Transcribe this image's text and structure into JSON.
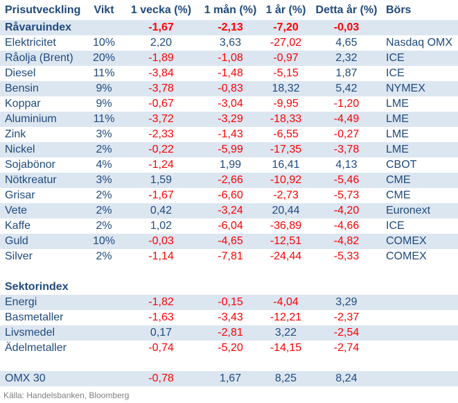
{
  "colors": {
    "text_navy": "#1F497D",
    "negative_red": "#FF0000",
    "row_band_blue": "#DCE6F1",
    "footer_gray": "#7F7F7F",
    "background": "#FFFFFF"
  },
  "chart_data": {
    "type": "table",
    "title": "Prisutveckling",
    "columns": [
      "Prisutveckling",
      "Vikt",
      "1 vecka (%)",
      "1 mån (%)",
      "1 år (%)",
      "Detta år (%)",
      "Börs"
    ],
    "rows": [
      {
        "type": "index",
        "label": "Råvaruindex",
        "vikt": "",
        "v1w": "-1,67",
        "v1m": "-2,13",
        "v1y": "-7,20",
        "ytd": "-0,03",
        "bors": ""
      },
      {
        "type": "commodity",
        "label": "Elektricitet",
        "vikt": "10%",
        "v1w": "2,20",
        "v1m": "3,63",
        "v1y": "-27,02",
        "ytd": "4,65",
        "bors": "Nasdaq OMX"
      },
      {
        "type": "commodity",
        "label": "Råolja (Brent)",
        "vikt": "20%",
        "v1w": "-1,89",
        "v1m": "-1,08",
        "v1y": "-0,97",
        "ytd": "2,32",
        "bors": "ICE"
      },
      {
        "type": "commodity",
        "label": "Diesel",
        "vikt": "11%",
        "v1w": "-3,84",
        "v1m": "-1,48",
        "v1y": "-5,15",
        "ytd": "1,87",
        "bors": "ICE"
      },
      {
        "type": "commodity",
        "label": "Bensin",
        "vikt": "9%",
        "v1w": "-3,78",
        "v1m": "-0,83",
        "v1y": "18,32",
        "ytd": "5,42",
        "bors": "NYMEX"
      },
      {
        "type": "commodity",
        "label": "Koppar",
        "vikt": "9%",
        "v1w": "-0,67",
        "v1m": "-3,04",
        "v1y": "-9,95",
        "ytd": "-1,20",
        "bors": "LME"
      },
      {
        "type": "commodity",
        "label": "Aluminium",
        "vikt": "11%",
        "v1w": "-3,72",
        "v1m": "-3,29",
        "v1y": "-18,33",
        "ytd": "-4,49",
        "bors": "LME"
      },
      {
        "type": "commodity",
        "label": "Zink",
        "vikt": "3%",
        "v1w": "-2,33",
        "v1m": "-1,43",
        "v1y": "-6,55",
        "ytd": "-0,27",
        "bors": "LME"
      },
      {
        "type": "commodity",
        "label": "Nickel",
        "vikt": "2%",
        "v1w": "-0,22",
        "v1m": "-5,99",
        "v1y": "-17,35",
        "ytd": "-3,78",
        "bors": "LME"
      },
      {
        "type": "commodity",
        "label": "Sojabönor",
        "vikt": "4%",
        "v1w": "-1,24",
        "v1m": "1,99",
        "v1y": "16,41",
        "ytd": "4,13",
        "bors": "CBOT"
      },
      {
        "type": "commodity",
        "label": "Nötkreatur",
        "vikt": "3%",
        "v1w": "1,59",
        "v1m": "-2,66",
        "v1y": "-10,92",
        "ytd": "-5,46",
        "bors": "CME"
      },
      {
        "type": "commodity",
        "label": "Grisar",
        "vikt": "2%",
        "v1w": "-1,67",
        "v1m": "-6,60",
        "v1y": "-2,73",
        "ytd": "-5,73",
        "bors": "CME"
      },
      {
        "type": "commodity",
        "label": "Vete",
        "vikt": "2%",
        "v1w": "0,42",
        "v1m": "-3,24",
        "v1y": "20,44",
        "ytd": "-4,20",
        "bors": "Euronext"
      },
      {
        "type": "commodity",
        "label": "Kaffe",
        "vikt": "2%",
        "v1w": "1,02",
        "v1m": "-6,04",
        "v1y": "-36,89",
        "ytd": "-4,66",
        "bors": "ICE"
      },
      {
        "type": "commodity",
        "label": "Guld",
        "vikt": "10%",
        "v1w": "-0,03",
        "v1m": "-4,65",
        "v1y": "-12,51",
        "ytd": "-4,82",
        "bors": "COMEX"
      },
      {
        "type": "commodity",
        "label": "Silver",
        "vikt": "2%",
        "v1w": "-1,14",
        "v1m": "-7,81",
        "v1y": "-24,44",
        "ytd": "-5,33",
        "bors": "COMEX"
      },
      {
        "type": "spacer",
        "label": "",
        "vikt": "",
        "v1w": "",
        "v1m": "",
        "v1y": "",
        "ytd": "",
        "bors": ""
      },
      {
        "type": "section",
        "label": "Sektorindex",
        "vikt": "",
        "v1w": "",
        "v1m": "",
        "v1y": "",
        "ytd": "",
        "bors": ""
      },
      {
        "type": "sector",
        "label": "Energi",
        "vikt": "",
        "v1w": "-1,82",
        "v1m": "-0,15",
        "v1y": "-4,04",
        "ytd": "3,29",
        "bors": ""
      },
      {
        "type": "sector",
        "label": "Basmetaller",
        "vikt": "",
        "v1w": "-1,63",
        "v1m": "-3,43",
        "v1y": "-12,21",
        "ytd": "-2,37",
        "bors": ""
      },
      {
        "type": "sector",
        "label": "Livsmedel",
        "vikt": "",
        "v1w": "0,17",
        "v1m": "-2,81",
        "v1y": "3,22",
        "ytd": "-2,54",
        "bors": ""
      },
      {
        "type": "sector",
        "label": "Ädelmetaller",
        "vikt": "",
        "v1w": "-0,74",
        "v1m": "-5,20",
        "v1y": "-14,15",
        "ytd": "-2,74",
        "bors": ""
      },
      {
        "type": "spacer",
        "label": "",
        "vikt": "",
        "v1w": "",
        "v1m": "",
        "v1y": "",
        "ytd": "",
        "bors": ""
      },
      {
        "type": "equity-index",
        "label": "OMX 30",
        "vikt": "",
        "v1w": "-0,78",
        "v1m": "1,67",
        "v1y": "8,25",
        "ytd": "8,24",
        "bors": ""
      }
    ]
  },
  "footer": {
    "source": "Källa: Handelsbanken, Bloomberg"
  }
}
